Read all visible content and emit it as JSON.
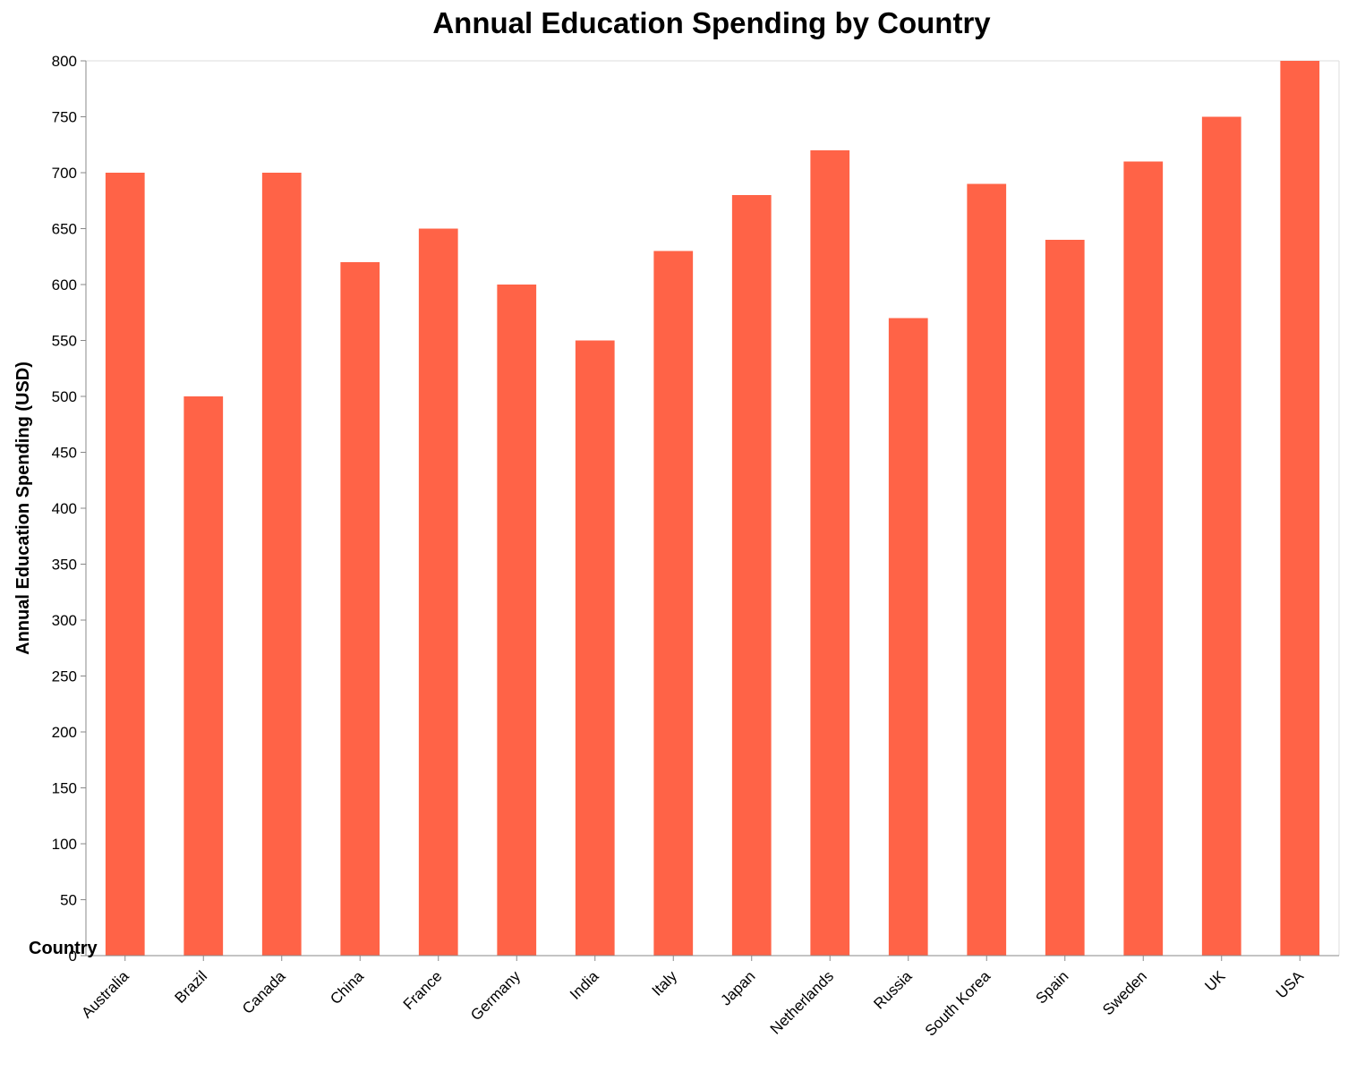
{
  "chart_data": {
    "type": "bar",
    "title": "Annual Education Spending by Country",
    "xlabel": "Country",
    "ylabel": "Annual Education Spending (USD)",
    "ylim": [
      0,
      800
    ],
    "yticks": [
      0,
      50,
      100,
      150,
      200,
      250,
      300,
      350,
      400,
      450,
      500,
      550,
      600,
      650,
      700,
      750,
      800
    ],
    "grid": false,
    "categories": [
      "Australia",
      "Brazil",
      "Canada",
      "China",
      "France",
      "Germany",
      "India",
      "Italy",
      "Japan",
      "Netherlands",
      "Russia",
      "South Korea",
      "Spain",
      "Sweden",
      "UK",
      "USA"
    ],
    "values": [
      700,
      500,
      700,
      620,
      650,
      600,
      550,
      630,
      680,
      720,
      570,
      690,
      640,
      710,
      750,
      800
    ],
    "bar_color": "#ff6347",
    "axis_color": "#888888",
    "frame_color": "#dddddd"
  }
}
